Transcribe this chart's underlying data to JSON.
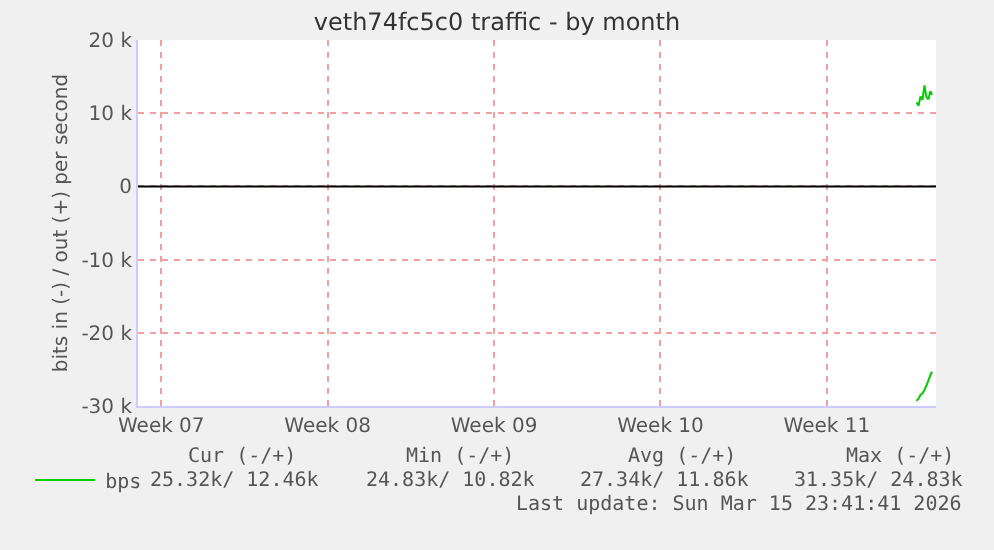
{
  "chart_data": {
    "type": "line",
    "title": "veth74fc5c0 traffic - by month",
    "ylabel": "bits in (-) / out (+) per second",
    "series": [
      {
        "color": "#00cc00",
        "x": [
          "2026-03-15T08:00",
          "2026-03-15T10:00",
          "2026-03-15T12:00",
          "2026-03-15T14:00",
          "2026-03-15T16:00",
          "2026-03-15T18:00",
          "2026-03-15T20:00",
          "2026-03-15T22:00",
          "2026-03-15T23:40"
        ],
        "values": [
          -29300,
          -29000,
          -28500,
          -28300,
          -27800,
          -27200,
          -26500,
          -25800,
          -25300
        ]
      },
      {
        "name": "bps",
        "color": "#00cc00",
        "x": [
          "2026-03-15T08:00",
          "2026-03-15T10:00",
          "2026-03-15T12:00",
          "2026-03-15T14:00",
          "2026-03-15T16:00",
          "2026-03-15T18:00",
          "2026-03-15T20:00",
          "2026-03-15T22:00",
          "2026-03-15T23:40"
        ],
        "values": [
          11500,
          11000,
          12300,
          11800,
          13800,
          12200,
          11900,
          13000,
          12500
        ]
      }
    ],
    "xlim": [
      "2026-02-10T14:00",
      "2026-03-16T03:40"
    ],
    "xticks": [
      {
        "value": "2026-02-11T13:30",
        "label": "Week 07"
      },
      {
        "value": "2026-02-18T13:30",
        "label": "Week 08"
      },
      {
        "value": "2026-02-25T13:30",
        "label": "Week 09"
      },
      {
        "value": "2026-03-04T13:30",
        "label": "Week 10"
      },
      {
        "value": "2026-03-11T13:30",
        "label": "Week 11"
      }
    ],
    "ylim": [
      -30000,
      20000
    ],
    "yticks": [
      {
        "value": -30000,
        "label": "-30 k"
      },
      {
        "value": -20000,
        "label": "-20 k"
      },
      {
        "value": -10000,
        "label": "-10 k"
      },
      0,
      {
        "value": 10000,
        "label": "10 k"
      },
      {
        "value": 20000,
        "label": "20 k"
      }
    ],
    "ref_lines": [
      {
        "axis": "y",
        "value": 0,
        "color": "#000000"
      }
    ],
    "grid": true,
    "legend": "bottom left",
    "marker": "none",
    "line_style": "solid",
    "annotations": [
      "Cur (-/+)",
      "Min (-/+)",
      "Avg (-/+)",
      "Max (-/+)",
      "25.32k/ 12.46k",
      "24.83k/ 10.82k",
      "27.34k/ 11.86k",
      "31.35k/ 24.83k",
      "Last update: Sun Mar 15 23:41:41 2026"
    ]
  }
}
